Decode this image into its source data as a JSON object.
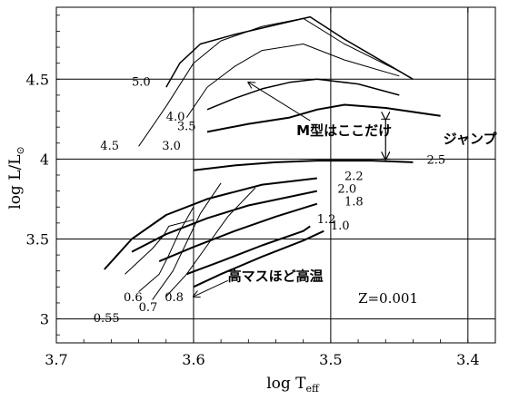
{
  "chart_data": {
    "type": "line",
    "title": "",
    "xlabel_main": "log T",
    "xlabel_sub": "eff",
    "ylabel": "log L/L",
    "ylabel_symbol": "⊙",
    "x_reversed": true,
    "xlim": [
      3.7,
      3.38
    ],
    "ylim": [
      2.85,
      4.95
    ],
    "grid": true,
    "x_ticks": [
      3.7,
      3.6,
      3.5,
      3.4
    ],
    "x_tick_labels": [
      "3.7",
      "3.6",
      "3.5",
      "3.4"
    ],
    "y_ticks": [
      3,
      3.5,
      4,
      4.5
    ],
    "y_tick_labels": [
      "3",
      "3.5",
      "4",
      "4.5"
    ],
    "series": [
      {
        "name": "0.55",
        "width": 1,
        "points": [
          [
            3.65,
            3.28
          ],
          [
            3.63,
            3.44
          ],
          [
            3.622,
            3.52
          ],
          [
            3.618,
            3.58
          ],
          [
            3.6,
            3.62
          ]
        ]
      },
      {
        "name": "0.6",
        "width": 1,
        "points": [
          [
            3.64,
            3.17
          ],
          [
            3.625,
            3.28
          ],
          [
            3.618,
            3.4
          ],
          [
            3.61,
            3.55
          ],
          [
            3.6,
            3.7
          ]
        ]
      },
      {
        "name": "0.7",
        "width": 1,
        "points": [
          [
            3.63,
            3.12
          ],
          [
            3.615,
            3.3
          ],
          [
            3.605,
            3.48
          ],
          [
            3.595,
            3.66
          ],
          [
            3.58,
            3.85
          ]
        ]
      },
      {
        "name": "0.8",
        "width": 1,
        "points": [
          [
            3.62,
            3.14
          ],
          [
            3.605,
            3.28
          ],
          [
            3.59,
            3.46
          ],
          [
            3.575,
            3.64
          ],
          [
            3.555,
            3.82
          ]
        ]
      },
      {
        "name": "1.0",
        "width": 2,
        "points": [
          [
            3.6,
            3.2
          ],
          [
            3.58,
            3.28
          ],
          [
            3.55,
            3.39
          ],
          [
            3.52,
            3.49
          ],
          [
            3.505,
            3.55
          ]
        ]
      },
      {
        "name": "1.2",
        "width": 2,
        "points": [
          [
            3.605,
            3.28
          ],
          [
            3.58,
            3.36
          ],
          [
            3.55,
            3.46
          ],
          [
            3.52,
            3.55
          ],
          [
            3.515,
            3.58
          ]
        ]
      },
      {
        "name": "1.8",
        "width": 2,
        "points": [
          [
            3.625,
            3.36
          ],
          [
            3.6,
            3.45
          ],
          [
            3.57,
            3.55
          ],
          [
            3.54,
            3.64
          ],
          [
            3.51,
            3.72
          ]
        ]
      },
      {
        "name": "2.0",
        "width": 2,
        "points": [
          [
            3.645,
            3.42
          ],
          [
            3.62,
            3.53
          ],
          [
            3.59,
            3.63
          ],
          [
            3.56,
            3.71
          ],
          [
            3.51,
            3.8
          ]
        ]
      },
      {
        "name": "2.2",
        "width": 2,
        "points": [
          [
            3.665,
            3.31
          ],
          [
            3.645,
            3.5
          ],
          [
            3.62,
            3.65
          ],
          [
            3.59,
            3.75
          ],
          [
            3.55,
            3.84
          ],
          [
            3.51,
            3.88
          ]
        ]
      },
      {
        "name": "2.5",
        "width": 2,
        "points": [
          [
            3.6,
            3.93
          ],
          [
            3.57,
            3.96
          ],
          [
            3.54,
            3.98
          ],
          [
            3.51,
            3.99
          ],
          [
            3.47,
            3.99
          ],
          [
            3.44,
            3.98
          ]
        ]
      },
      {
        "name": "3.0",
        "width": 2,
        "points": [
          [
            3.59,
            4.17
          ],
          [
            3.56,
            4.22
          ],
          [
            3.53,
            4.26
          ],
          [
            3.51,
            4.31
          ],
          [
            3.49,
            4.34
          ],
          [
            3.46,
            4.32
          ],
          [
            3.42,
            4.27
          ]
        ]
      },
      {
        "name": "3.5",
        "width": 1.5,
        "points": [
          [
            3.59,
            4.31
          ],
          [
            3.57,
            4.38
          ],
          [
            3.55,
            4.44
          ],
          [
            3.53,
            4.48
          ],
          [
            3.51,
            4.5
          ],
          [
            3.48,
            4.47
          ],
          [
            3.45,
            4.4
          ]
        ]
      },
      {
        "name": "4.0",
        "width": 1,
        "points": [
          [
            3.605,
            4.26
          ],
          [
            3.59,
            4.45
          ],
          [
            3.57,
            4.58
          ],
          [
            3.55,
            4.68
          ],
          [
            3.52,
            4.72
          ],
          [
            3.49,
            4.62
          ],
          [
            3.45,
            4.52
          ]
        ]
      },
      {
        "name": "4.5",
        "width": 1,
        "points": [
          [
            3.64,
            4.08
          ],
          [
            3.62,
            4.33
          ],
          [
            3.6,
            4.6
          ],
          [
            3.58,
            4.74
          ],
          [
            3.55,
            4.83
          ],
          [
            3.52,
            4.88
          ],
          [
            3.49,
            4.72
          ],
          [
            3.45,
            4.55
          ]
        ]
      },
      {
        "name": "5.0",
        "width": 1.5,
        "points": [
          [
            3.62,
            4.45
          ],
          [
            3.61,
            4.6
          ],
          [
            3.595,
            4.72
          ],
          [
            3.57,
            4.78
          ],
          [
            3.54,
            4.84
          ],
          [
            3.515,
            4.89
          ],
          [
            3.49,
            4.75
          ],
          [
            3.44,
            4.5
          ]
        ]
      }
    ],
    "mass_labels": [
      {
        "text": "5.0",
        "x": 3.645,
        "y": 4.46
      },
      {
        "text": "4.5",
        "x": 3.668,
        "y": 4.06
      },
      {
        "text": "4.0",
        "x": 3.62,
        "y": 4.24
      },
      {
        "text": "3.5",
        "x": 3.612,
        "y": 4.18
      },
      {
        "text": "3.0",
        "x": 3.623,
        "y": 4.06
      },
      {
        "text": "2.5",
        "x": 3.43,
        "y": 3.97
      },
      {
        "text": "2.2",
        "x": 3.49,
        "y": 3.87
      },
      {
        "text": "2.0",
        "x": 3.495,
        "y": 3.79
      },
      {
        "text": "1.8",
        "x": 3.49,
        "y": 3.71
      },
      {
        "text": "1.2",
        "x": 3.51,
        "y": 3.6
      },
      {
        "text": "1.0",
        "x": 3.5,
        "y": 3.56
      },
      {
        "text": "0.8",
        "x": 3.621,
        "y": 3.11
      },
      {
        "text": "0.6",
        "x": 3.651,
        "y": 3.11
      },
      {
        "text": "0.7",
        "x": 3.64,
        "y": 3.05
      },
      {
        "text": "0.55",
        "x": 3.673,
        "y": 2.98
      }
    ],
    "annotations": [
      {
        "text": "M型はここだけ",
        "x": 3.525,
        "y": 4.15
      },
      {
        "text": "ジャンプ",
        "x": 3.418,
        "y": 4.1
      },
      {
        "text": "高マスほど高温",
        "x": 3.575,
        "y": 3.24
      },
      {
        "text": "Z=0.001",
        "x": 3.48,
        "y": 3.1
      }
    ],
    "jump_arrow": {
      "x": 3.46,
      "y_top": 4.25,
      "y_bottom": 4.0
    },
    "pointer_arrows": [
      {
        "from": [
          3.515,
          4.24
        ],
        "to": [
          3.56,
          4.48
        ]
      },
      {
        "from": [
          3.575,
          3.24
        ],
        "to": [
          3.6,
          3.14
        ]
      }
    ]
  }
}
